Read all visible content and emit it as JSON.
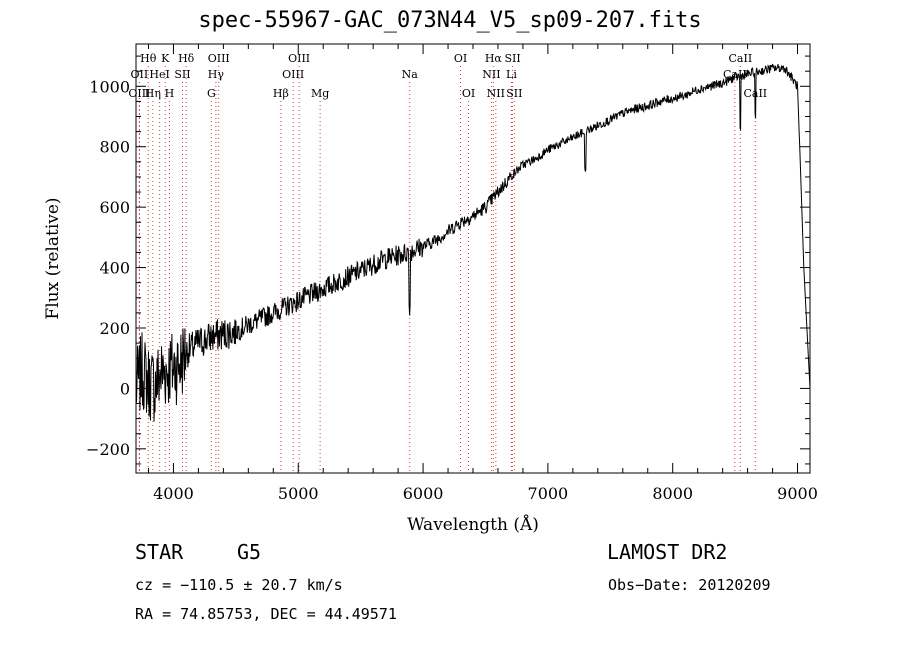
{
  "chart_data": {
    "type": "line",
    "title": "spec-55967-GAC_073N44_V5_sp09-207.fits",
    "xlabel": "Wavelength (Å)",
    "ylabel": "Flux (relative)",
    "xlim": [
      3700,
      9100
    ],
    "ylim": [
      -280,
      1140
    ],
    "xticks": [
      4000,
      5000,
      6000,
      7000,
      8000,
      9000
    ],
    "yticks": [
      -200,
      0,
      200,
      400,
      600,
      800,
      1000
    ],
    "grid": false,
    "series": [
      {
        "x": [
          3700,
          3750,
          3800,
          3850,
          3900,
          3950,
          4000,
          4050,
          4100,
          4200,
          4300,
          4400,
          4500,
          4600,
          4700,
          4800,
          4900,
          5000,
          5100,
          5200,
          5300,
          5400,
          5500,
          5600,
          5700,
          5800,
          5900,
          6000,
          6100,
          6200,
          6300,
          6400,
          6500,
          6600,
          6700,
          6800,
          6900,
          7000,
          7100,
          7200,
          7300,
          7400,
          7500,
          7600,
          7700,
          7800,
          7900,
          8000,
          8100,
          8200,
          8300,
          8400,
          8500,
          8600,
          8700,
          8800,
          8900,
          9000,
          9050,
          9100
        ],
        "y": [
          0,
          60,
          20,
          10,
          50,
          60,
          70,
          80,
          120,
          150,
          170,
          180,
          190,
          210,
          230,
          250,
          270,
          290,
          310,
          330,
          350,
          370,
          390,
          410,
          430,
          440,
          455,
          470,
          490,
          520,
          550,
          570,
          600,
          650,
          700,
          740,
          760,
          790,
          810,
          830,
          850,
          870,
          890,
          910,
          925,
          935,
          950,
          960,
          970,
          990,
          1000,
          1010,
          1030,
          1040,
          1050,
          1060,
          1060,
          1000,
          400,
          0
        ]
      }
    ],
    "spectral_lines": [
      {
        "label": "Hθ",
        "wavelength": 3798,
        "row": 1
      },
      {
        "label": "K",
        "wavelength": 3934,
        "row": 1
      },
      {
        "label": "Hδ",
        "wavelength": 4102,
        "row": 1
      },
      {
        "label": "OIII",
        "wavelength": 4363,
        "row": 1
      },
      {
        "label": "OIII",
        "wavelength": 5007,
        "row": 1
      },
      {
        "label": "OI",
        "wavelength": 6300,
        "row": 1
      },
      {
        "label": "Hα",
        "wavelength": 6563,
        "row": 1
      },
      {
        "label": "SII",
        "wavelength": 6717,
        "row": 1
      },
      {
        "label": "CaII",
        "wavelength": 8542,
        "row": 1
      },
      {
        "label": "OII",
        "wavelength": 3727,
        "row": 2
      },
      {
        "label": "HeI",
        "wavelength": 3889,
        "row": 2
      },
      {
        "label": "SII",
        "wavelength": 4072,
        "row": 2
      },
      {
        "label": "Hγ",
        "wavelength": 4340,
        "row": 2
      },
      {
        "label": "OIII",
        "wavelength": 4959,
        "row": 2
      },
      {
        "label": "Na",
        "wavelength": 5893,
        "row": 2
      },
      {
        "label": "NII",
        "wavelength": 6548,
        "row": 2
      },
      {
        "label": "Li",
        "wavelength": 6708,
        "row": 2
      },
      {
        "label": "CaII",
        "wavelength": 8498,
        "row": 2
      },
      {
        "label": "OIII",
        "wavelength": 3727,
        "row": 3
      },
      {
        "label": "Hη",
        "wavelength": 3835,
        "row": 3
      },
      {
        "label": "H",
        "wavelength": 3968,
        "row": 3
      },
      {
        "label": "G",
        "wavelength": 4304,
        "row": 3
      },
      {
        "label": "Hβ",
        "wavelength": 4861,
        "row": 3
      },
      {
        "label": "Mg",
        "wavelength": 5175,
        "row": 3
      },
      {
        "label": "OI",
        "wavelength": 6364,
        "row": 3
      },
      {
        "label": "NII",
        "wavelength": 6583,
        "row": 3
      },
      {
        "label": "SII",
        "wavelength": 6731,
        "row": 3
      },
      {
        "label": "CaII",
        "wavelength": 8662,
        "row": 3
      }
    ]
  },
  "info": {
    "class": "STAR",
    "subclass": "G5",
    "survey": "LAMOST DR2",
    "cz": "cz = −110.5 ± 20.7 km/s",
    "obs_date": "Obs−Date: 20120209",
    "radec": "RA =  74.85753, DEC =  44.49571"
  }
}
